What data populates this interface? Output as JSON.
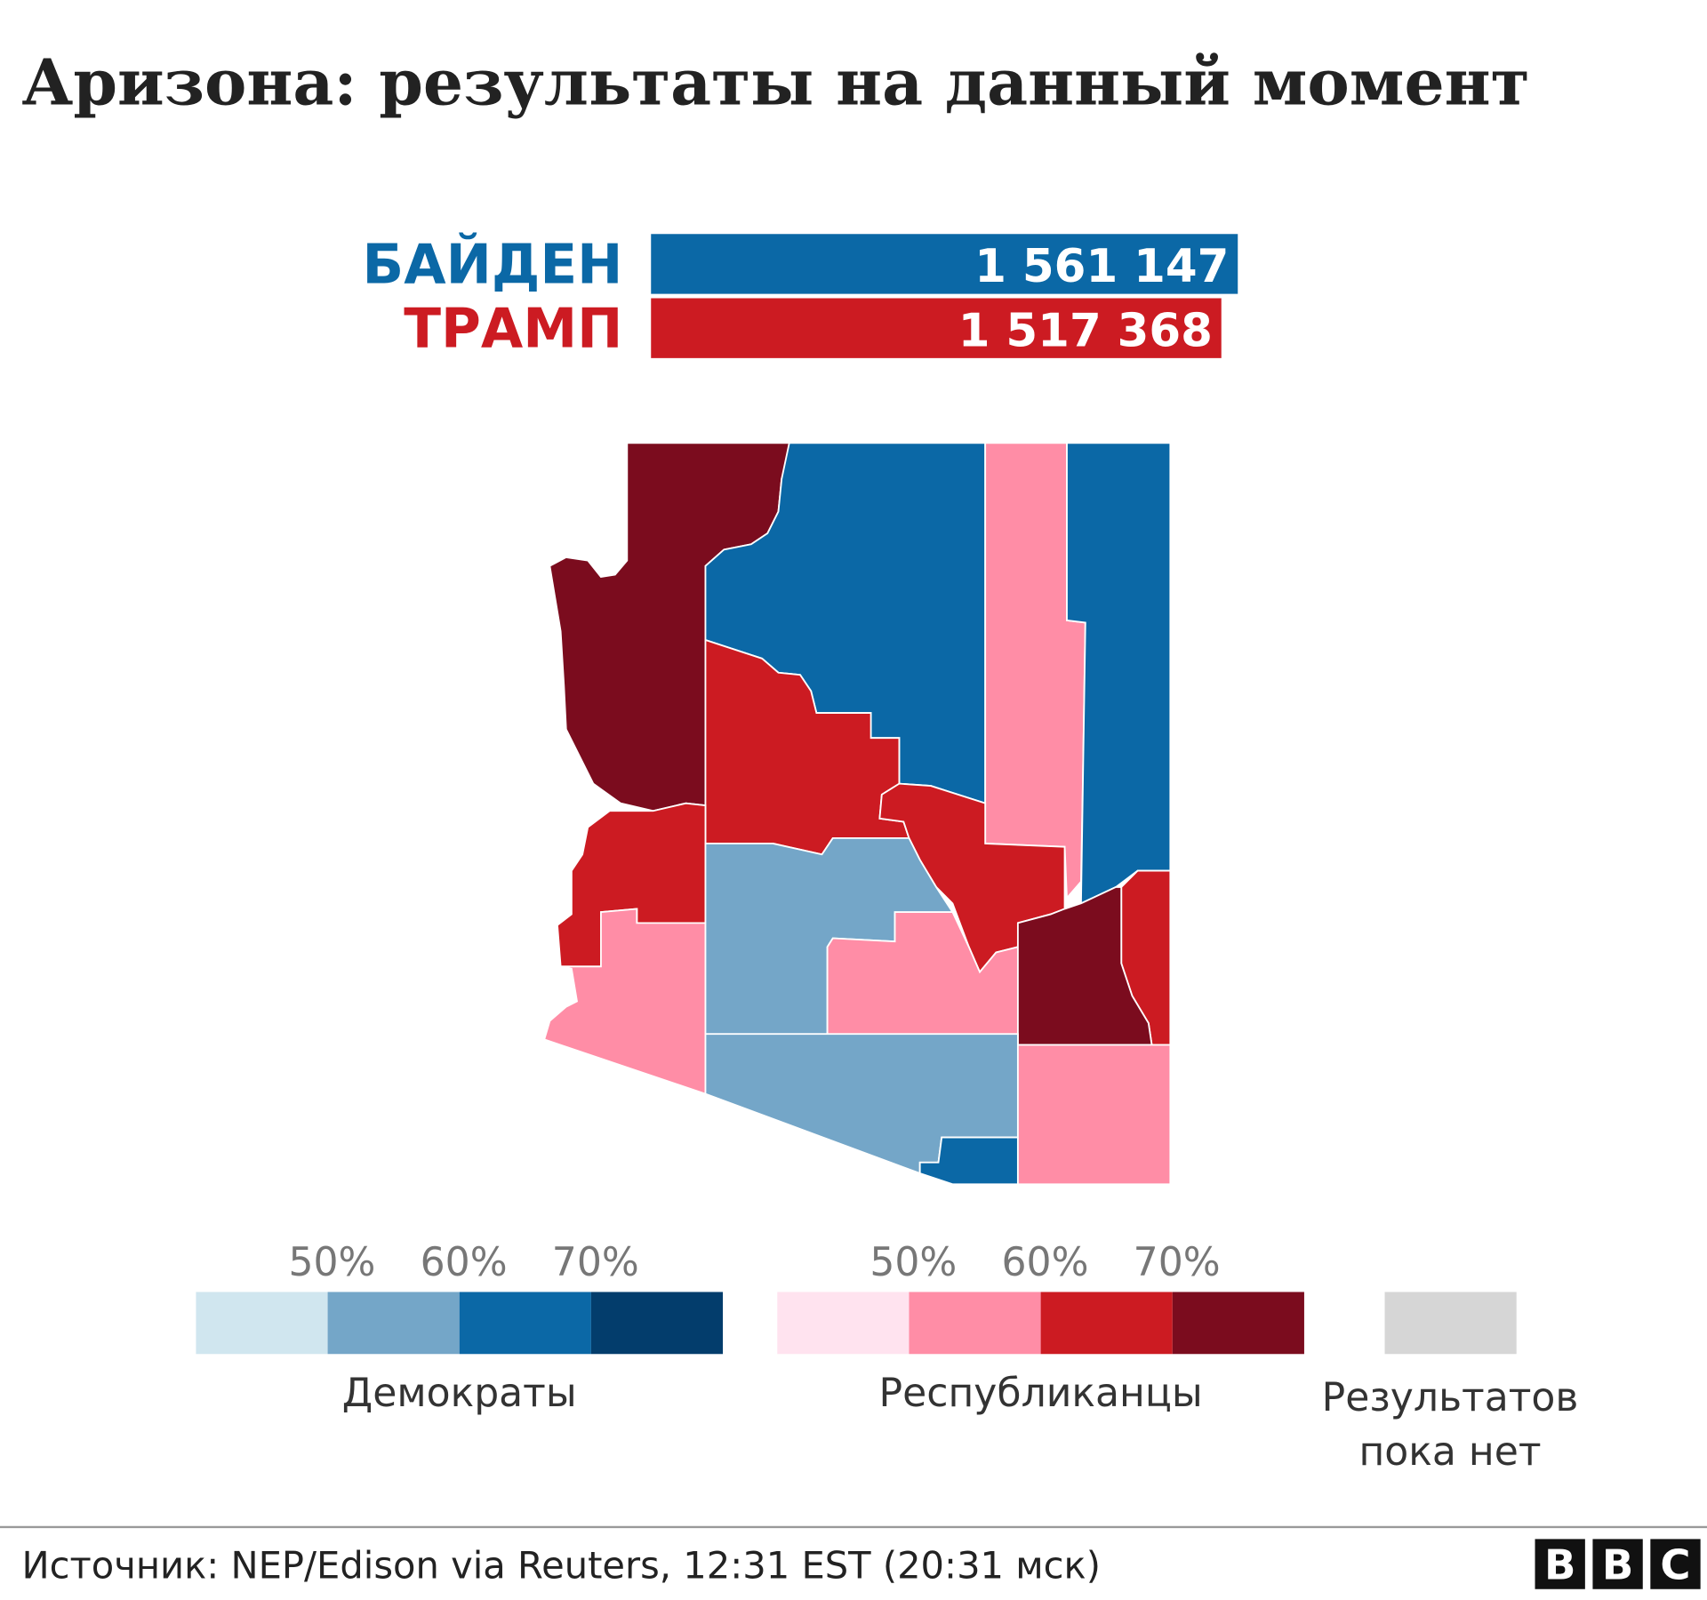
{
  "title": "Аризона: результаты на данный момент",
  "results": {
    "candidates": [
      {
        "name": "БАЙДЕН",
        "votes": 1561147,
        "votes_label": "1 561 147",
        "color": "#0b68a6"
      },
      {
        "name": "ТРАМП",
        "votes": 1517368,
        "votes_label": "1 517 368",
        "color": "#cc1b22"
      }
    ]
  },
  "legend": {
    "groups": [
      {
        "label": "Демократы",
        "ticks": [
          "50%",
          "60%",
          "70%"
        ],
        "colors": [
          "#d0e6ef",
          "#74a6c8",
          "#0b68a6",
          "#033d6c"
        ]
      },
      {
        "label": "Республиканцы",
        "ticks": [
          "50%",
          "60%",
          "70%"
        ],
        "colors": [
          "#ffe3ef",
          "#ff8da6",
          "#cc1b22",
          "#7b0c1e"
        ]
      }
    ],
    "no_results": {
      "lines": [
        "Результатов",
        "пока нет"
      ],
      "color": "#d6d6d6"
    }
  },
  "source": "Источник: NEP/Edison via Reuters, 12:31 EST (20:31 мск)",
  "logo": [
    "B",
    "B",
    "C"
  ]
}
